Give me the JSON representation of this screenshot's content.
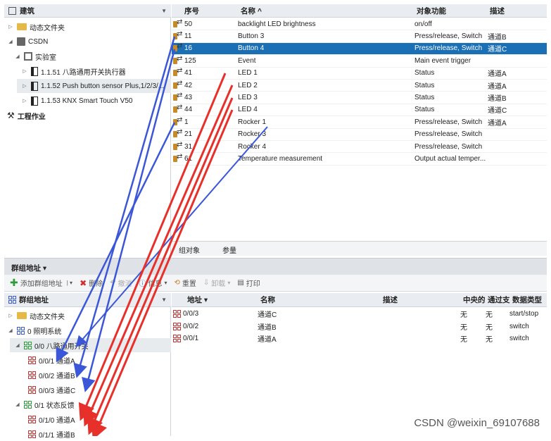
{
  "left_top": {
    "title": "建筑",
    "tree": [
      {
        "label": "动态文件夹"
      },
      {
        "label": "CSDN"
      },
      {
        "label": "实验室"
      },
      {
        "label": "1.1.51 八路通用开关执行器"
      },
      {
        "label": "1.1.52 Push button sensor Plus,1/2/3/..."
      },
      {
        "label": "1.1.53 KNX Smart Touch V50"
      },
      {
        "label": "工程作业"
      }
    ]
  },
  "objects_table": {
    "columns": [
      "序号",
      "名称 ^",
      "对象功能",
      "描述"
    ],
    "rows": [
      {
        "num": "50",
        "name": "backlight LED brightness",
        "func": "on/off",
        "desc": ""
      },
      {
        "num": "11",
        "name": "Button 3",
        "func": "Press/release, Switch",
        "desc": "通道B"
      },
      {
        "num": "16",
        "name": "Button 4",
        "func": "Press/release, Switch",
        "desc": "通道C"
      },
      {
        "num": "125",
        "name": "Event",
        "func": "Main event trigger",
        "desc": ""
      },
      {
        "num": "41",
        "name": "LED 1",
        "func": "Status",
        "desc": "通道A"
      },
      {
        "num": "42",
        "name": "LED 2",
        "func": "Status",
        "desc": "通道A"
      },
      {
        "num": "43",
        "name": "LED 3",
        "func": "Status",
        "desc": "通道B"
      },
      {
        "num": "44",
        "name": "LED 4",
        "func": "Status",
        "desc": "通道C"
      },
      {
        "num": "1",
        "name": "Rocker 1",
        "func": "Press/release, Switch",
        "desc": "通道A"
      },
      {
        "num": "21",
        "name": "Rocker 3",
        "func": "Press/release, Switch",
        "desc": ""
      },
      {
        "num": "31",
        "name": "Rocker 4",
        "func": "Press/release, Switch",
        "desc": ""
      },
      {
        "num": "61",
        "name": "Temperature measurement",
        "func": "Output actual temper...",
        "desc": ""
      }
    ],
    "tabs": [
      "组对象",
      "参量"
    ]
  },
  "group_section": {
    "title": "群组地址 ▾",
    "toolbar": [
      "添加群组地址",
      "删除",
      "撤消",
      "信息",
      "重置",
      "卸载",
      "打印"
    ],
    "left_title": "群组地址",
    "tree": [
      {
        "label": "动态文件夹"
      },
      {
        "label": "0 照明系统"
      },
      {
        "label": "0/0 八路通用开关"
      },
      {
        "label": "0/0/1 通道A"
      },
      {
        "label": "0/0/2 通道B"
      },
      {
        "label": "0/0/3 通道C"
      },
      {
        "label": "0/1 状态反馈"
      },
      {
        "label": "0/1/0 通道A"
      },
      {
        "label": "0/1/1 通道B"
      }
    ],
    "table_columns": [
      "地址 ▾",
      "名称",
      "描述",
      "中央的",
      "通过支",
      "数据类型"
    ],
    "table_rows": [
      {
        "addr": "0/0/3",
        "name": "通道C",
        "desc": "",
        "central": "无",
        "pass": "无",
        "type": "start/stop"
      },
      {
        "addr": "0/0/2",
        "name": "通道B",
        "desc": "",
        "central": "无",
        "pass": "无",
        "type": "switch"
      },
      {
        "addr": "0/0/1",
        "name": "通道A",
        "desc": "",
        "central": "无",
        "pass": "无",
        "type": "switch"
      }
    ]
  },
  "watermark": "CSDN @weixin_69107688",
  "colors": {
    "selected": "#1a6fb5",
    "blue_arrow": "#3b57d8",
    "red_arrow": "#e8302a"
  }
}
